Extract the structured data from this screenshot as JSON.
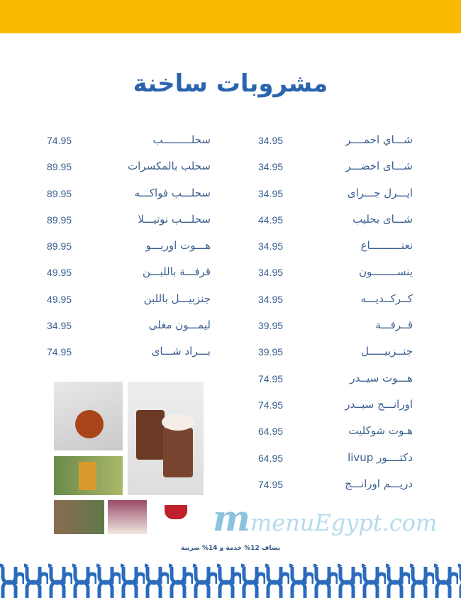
{
  "title": "مشروبات ساخنة",
  "right_items": [
    {
      "name": "شـــاي احمــــر",
      "price": "34.95"
    },
    {
      "name": "شـــاى اخضـــر",
      "price": "34.95"
    },
    {
      "name": "ايـــرل جـــراى",
      "price": "34.95"
    },
    {
      "name": "شـــاى بحليب",
      "price": "44.95"
    },
    {
      "name": "نعنــــــــــاع",
      "price": "34.95"
    },
    {
      "name": "ينســــــــون",
      "price": "34.95"
    },
    {
      "name": "كــركــديـــه",
      "price": "34.95"
    },
    {
      "name": "قــرفـــة",
      "price": "39.95"
    },
    {
      "name": "جنــزبيـــــل",
      "price": "39.95"
    },
    {
      "name": "هـــوت سيــدر",
      "price": "74.95"
    },
    {
      "name": "اورانـــج سيــدر",
      "price": "74.95"
    },
    {
      "name": "هـوت شوكليت",
      "price": "64.95"
    },
    {
      "name": "دكتــــور livup",
      "price": "64.95"
    },
    {
      "name": "دريـــم اورانـــج",
      "price": "74.95"
    }
  ],
  "left_items": [
    {
      "name": "سحلـــــــــب",
      "price": "74.95"
    },
    {
      "name": "سحلب بالمكسرات",
      "price": "89.95"
    },
    {
      "name": "سحلـــب فواكـــه",
      "price": "89.95"
    },
    {
      "name": "سحلـــب نوتيـــلا",
      "price": "89.95"
    },
    {
      "name": "هـــوت اوريـــو",
      "price": "89.95"
    },
    {
      "name": "قرفـــة باللبـــن",
      "price": "49.95"
    },
    {
      "name": "جنزبيـــل باللبن",
      "price": "49.95"
    },
    {
      "name": "ليمـــون مغلى",
      "price": "34.95"
    },
    {
      "name": "بـــراد شـــاى",
      "price": "74.95"
    }
  ],
  "watermark": "menuEgypt.com",
  "footer_note": "يضاف 12% خدمة و 14% ضريبة",
  "colors": {
    "top_bar": "#fbb800",
    "title": "#2a64ad",
    "pattern": "#2a6bbd",
    "text": "#3a5f8f"
  }
}
